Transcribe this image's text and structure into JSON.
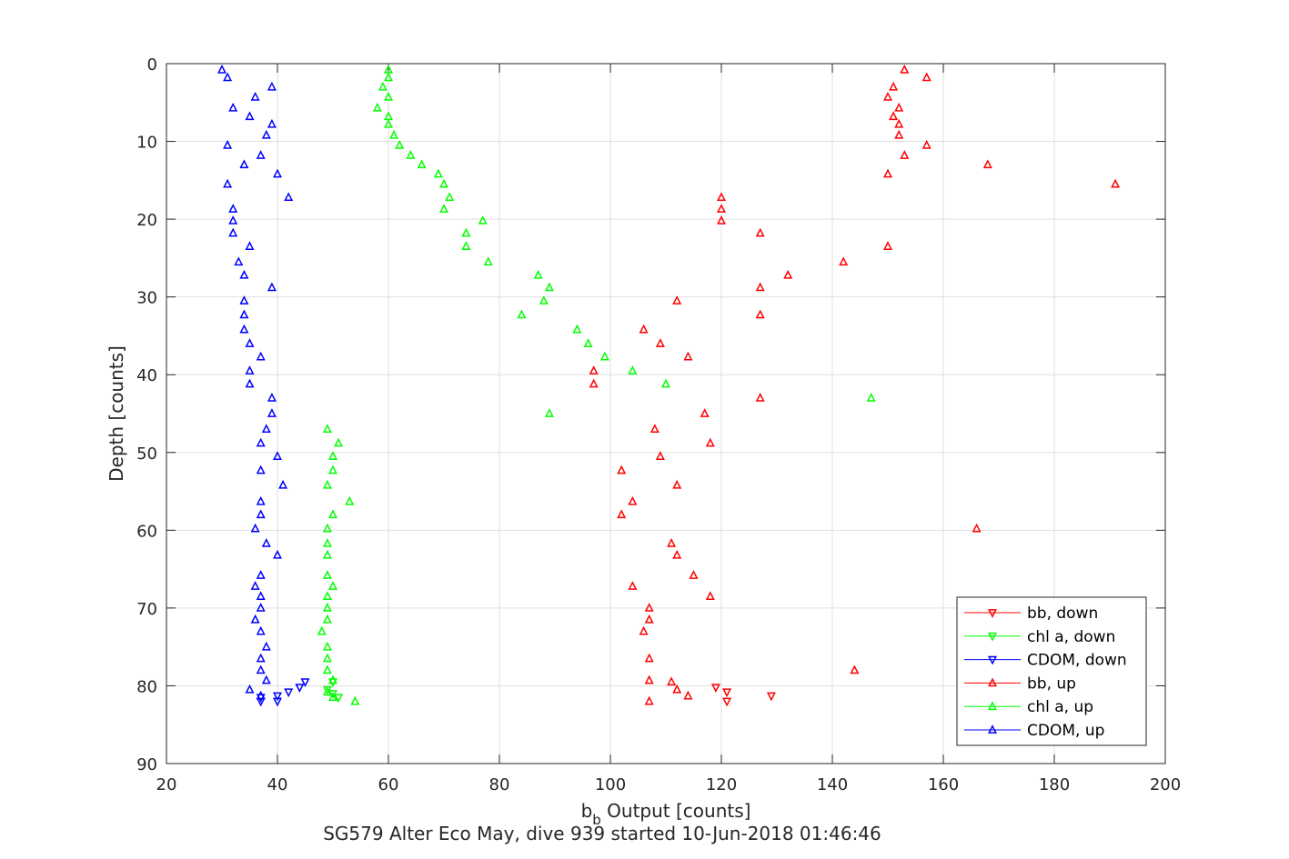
{
  "chart_data": {
    "type": "scatter",
    "title": "SG579 Alter Eco May, dive 939 started 10-Jun-2018 01:46:46",
    "xlabel_main": "b",
    "xlabel_sub": "b",
    "xlabel_rest": " Output [counts]",
    "ylabel": "Depth [counts]",
    "xlim": [
      20,
      200
    ],
    "ylim": [
      0,
      90
    ],
    "y_reversed": true,
    "grid": true,
    "legend_position": "bottom-right",
    "x_ticks": [
      "20",
      "40",
      "60",
      "80",
      "100",
      "120",
      "140",
      "160",
      "180",
      "200"
    ],
    "y_ticks": [
      "0",
      "10",
      "20",
      "30",
      "40",
      "50",
      "60",
      "70",
      "80",
      "90"
    ],
    "series": [
      {
        "name": "bb, down",
        "color": "#ff0000",
        "marker": "triangle-down",
        "points": [
          [
            119,
            80.2
          ],
          [
            121,
            80.8
          ],
          [
            129,
            81.3
          ],
          [
            121,
            82.0
          ]
        ]
      },
      {
        "name": "chl a, down",
        "color": "#00ff00",
        "marker": "triangle-down",
        "points": [
          [
            50,
            79.5
          ],
          [
            49,
            80.5
          ],
          [
            50,
            81.0
          ],
          [
            51,
            81.5
          ]
        ]
      },
      {
        "name": "CDOM, down",
        "color": "#0000ff",
        "marker": "triangle-down",
        "points": [
          [
            45,
            79.5
          ],
          [
            44,
            80.2
          ],
          [
            42,
            80.8
          ],
          [
            40,
            81.3
          ],
          [
            37,
            81.5
          ],
          [
            37,
            82.0
          ],
          [
            40,
            82.0
          ]
        ]
      },
      {
        "name": "bb, up",
        "color": "#ff0000",
        "marker": "triangle-up",
        "points": [
          [
            153,
            0.8
          ],
          [
            157,
            1.8
          ],
          [
            151,
            3.0
          ],
          [
            150,
            4.3
          ],
          [
            152,
            5.7
          ],
          [
            151,
            6.8
          ],
          [
            152,
            7.8
          ],
          [
            152,
            9.2
          ],
          [
            157,
            10.5
          ],
          [
            153,
            11.8
          ],
          [
            168,
            13.0
          ],
          [
            150,
            14.2
          ],
          [
            191,
            15.5
          ],
          [
            120,
            17.2
          ],
          [
            120,
            18.7
          ],
          [
            120,
            20.2
          ],
          [
            127,
            21.8
          ],
          [
            150,
            23.5
          ],
          [
            142,
            25.5
          ],
          [
            132,
            27.2
          ],
          [
            127,
            28.8
          ],
          [
            112,
            30.5
          ],
          [
            127,
            32.3
          ],
          [
            106,
            34.2
          ],
          [
            109,
            36.0
          ],
          [
            114,
            37.7
          ],
          [
            97,
            39.5
          ],
          [
            97,
            41.2
          ],
          [
            127,
            43.0
          ],
          [
            117,
            45.0
          ],
          [
            108,
            47.0
          ],
          [
            118,
            48.8
          ],
          [
            109,
            50.5
          ],
          [
            102,
            52.3
          ],
          [
            112,
            54.2
          ],
          [
            104,
            56.3
          ],
          [
            102,
            58.0
          ],
          [
            166,
            59.8
          ],
          [
            111,
            61.7
          ],
          [
            112,
            63.2
          ],
          [
            115,
            65.8
          ],
          [
            104,
            67.2
          ],
          [
            118,
            68.5
          ],
          [
            107,
            70.0
          ],
          [
            107,
            71.5
          ],
          [
            106,
            73.0
          ],
          [
            107,
            76.5
          ],
          [
            144,
            78.0
          ],
          [
            107,
            79.3
          ],
          [
            111,
            79.5
          ],
          [
            112,
            80.5
          ],
          [
            114,
            81.3
          ],
          [
            107,
            82.0
          ]
        ]
      },
      {
        "name": "chl a, up",
        "color": "#00ff00",
        "marker": "triangle-up",
        "points": [
          [
            60,
            0.8
          ],
          [
            60,
            1.8
          ],
          [
            59,
            3.0
          ],
          [
            60,
            4.3
          ],
          [
            58,
            5.7
          ],
          [
            60,
            6.8
          ],
          [
            60,
            7.8
          ],
          [
            61,
            9.2
          ],
          [
            62,
            10.5
          ],
          [
            64,
            11.8
          ],
          [
            66,
            13.0
          ],
          [
            69,
            14.2
          ],
          [
            70,
            15.5
          ],
          [
            71,
            17.2
          ],
          [
            70,
            18.7
          ],
          [
            77,
            20.2
          ],
          [
            74,
            21.8
          ],
          [
            74,
            23.5
          ],
          [
            78,
            25.5
          ],
          [
            87,
            27.2
          ],
          [
            89,
            28.8
          ],
          [
            88,
            30.5
          ],
          [
            84,
            32.3
          ],
          [
            94,
            34.2
          ],
          [
            96,
            36.0
          ],
          [
            99,
            37.7
          ],
          [
            104,
            39.5
          ],
          [
            110,
            41.2
          ],
          [
            147,
            43.0
          ],
          [
            89,
            45.0
          ],
          [
            49,
            47.0
          ],
          [
            51,
            48.8
          ],
          [
            50,
            50.5
          ],
          [
            50,
            52.3
          ],
          [
            49,
            54.2
          ],
          [
            53,
            56.3
          ],
          [
            50,
            58.0
          ],
          [
            49,
            59.8
          ],
          [
            49,
            61.7
          ],
          [
            49,
            63.2
          ],
          [
            49,
            65.8
          ],
          [
            50,
            67.2
          ],
          [
            49,
            68.5
          ],
          [
            49,
            70.0
          ],
          [
            49,
            71.5
          ],
          [
            48,
            73.0
          ],
          [
            49,
            75.0
          ],
          [
            49,
            76.5
          ],
          [
            49,
            78.0
          ],
          [
            50,
            79.3
          ],
          [
            49,
            80.8
          ],
          [
            50,
            81.5
          ],
          [
            54,
            82.0
          ]
        ]
      },
      {
        "name": "CDOM, up",
        "color": "#0000ff",
        "marker": "triangle-up",
        "points": [
          [
            30,
            0.8
          ],
          [
            31,
            1.8
          ],
          [
            39,
            3.0
          ],
          [
            36,
            4.3
          ],
          [
            32,
            5.7
          ],
          [
            35,
            6.8
          ],
          [
            39,
            7.8
          ],
          [
            38,
            9.2
          ],
          [
            31,
            10.5
          ],
          [
            37,
            11.8
          ],
          [
            34,
            13.0
          ],
          [
            40,
            14.2
          ],
          [
            31,
            15.5
          ],
          [
            42,
            17.2
          ],
          [
            32,
            18.7
          ],
          [
            32,
            20.2
          ],
          [
            32,
            21.8
          ],
          [
            35,
            23.5
          ],
          [
            33,
            25.5
          ],
          [
            34,
            27.2
          ],
          [
            39,
            28.8
          ],
          [
            34,
            30.5
          ],
          [
            34,
            32.3
          ],
          [
            34,
            34.2
          ],
          [
            35,
            36.0
          ],
          [
            37,
            37.7
          ],
          [
            35,
            39.5
          ],
          [
            35,
            41.2
          ],
          [
            39,
            43.0
          ],
          [
            39,
            45.0
          ],
          [
            38,
            47.0
          ],
          [
            37,
            48.8
          ],
          [
            40,
            50.5
          ],
          [
            37,
            52.3
          ],
          [
            41,
            54.2
          ],
          [
            37,
            56.3
          ],
          [
            37,
            58.0
          ],
          [
            36,
            59.8
          ],
          [
            38,
            61.7
          ],
          [
            40,
            63.2
          ],
          [
            37,
            65.8
          ],
          [
            36,
            67.2
          ],
          [
            37,
            68.5
          ],
          [
            37,
            70.0
          ],
          [
            36,
            71.5
          ],
          [
            37,
            73.0
          ],
          [
            38,
            75.0
          ],
          [
            37,
            76.5
          ],
          [
            37,
            78.0
          ],
          [
            38,
            79.3
          ],
          [
            35,
            80.5
          ],
          [
            37,
            81.3
          ]
        ]
      }
    ]
  }
}
